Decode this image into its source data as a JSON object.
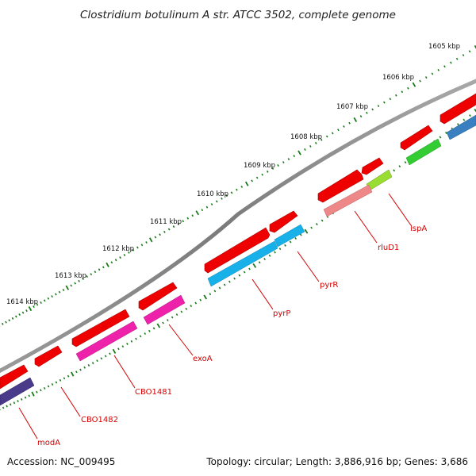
{
  "title": "Clostridium botulinum A str. ATCC 3502, complete genome",
  "footer": {
    "accession": "Accession: NC_009495",
    "topology": "Topology: circular; Length: 3,886,916 bp; Genes: 3,686"
  },
  "ticks": [
    "1605 kbp",
    "1606 kbp",
    "1607 kbp",
    "1608 kbp",
    "1609 kbp",
    "1610 kbp",
    "1611 kbp",
    "1612 kbp",
    "1613 kbp",
    "1614 kbp"
  ],
  "gene_labels": [
    "lspA",
    "rluD1",
    "pyrR",
    "pyrP",
    "exoA",
    "CBO1481",
    "CBO1482",
    "modA"
  ],
  "colors": {
    "backbone": "#8a8a8a",
    "forward": "#ee0000",
    "tick": "#1a7a1a",
    "label_line": "#d40000",
    "cog_blue": "#3a7fc0",
    "cog_green": "#33cc33",
    "cog_yellowgreen": "#99dd33",
    "cog_pink": "#ee8888",
    "cog_cyan": "#18b0e8",
    "cog_magenta": "#ee22aa",
    "cog_indigo": "#4a3a8a"
  }
}
